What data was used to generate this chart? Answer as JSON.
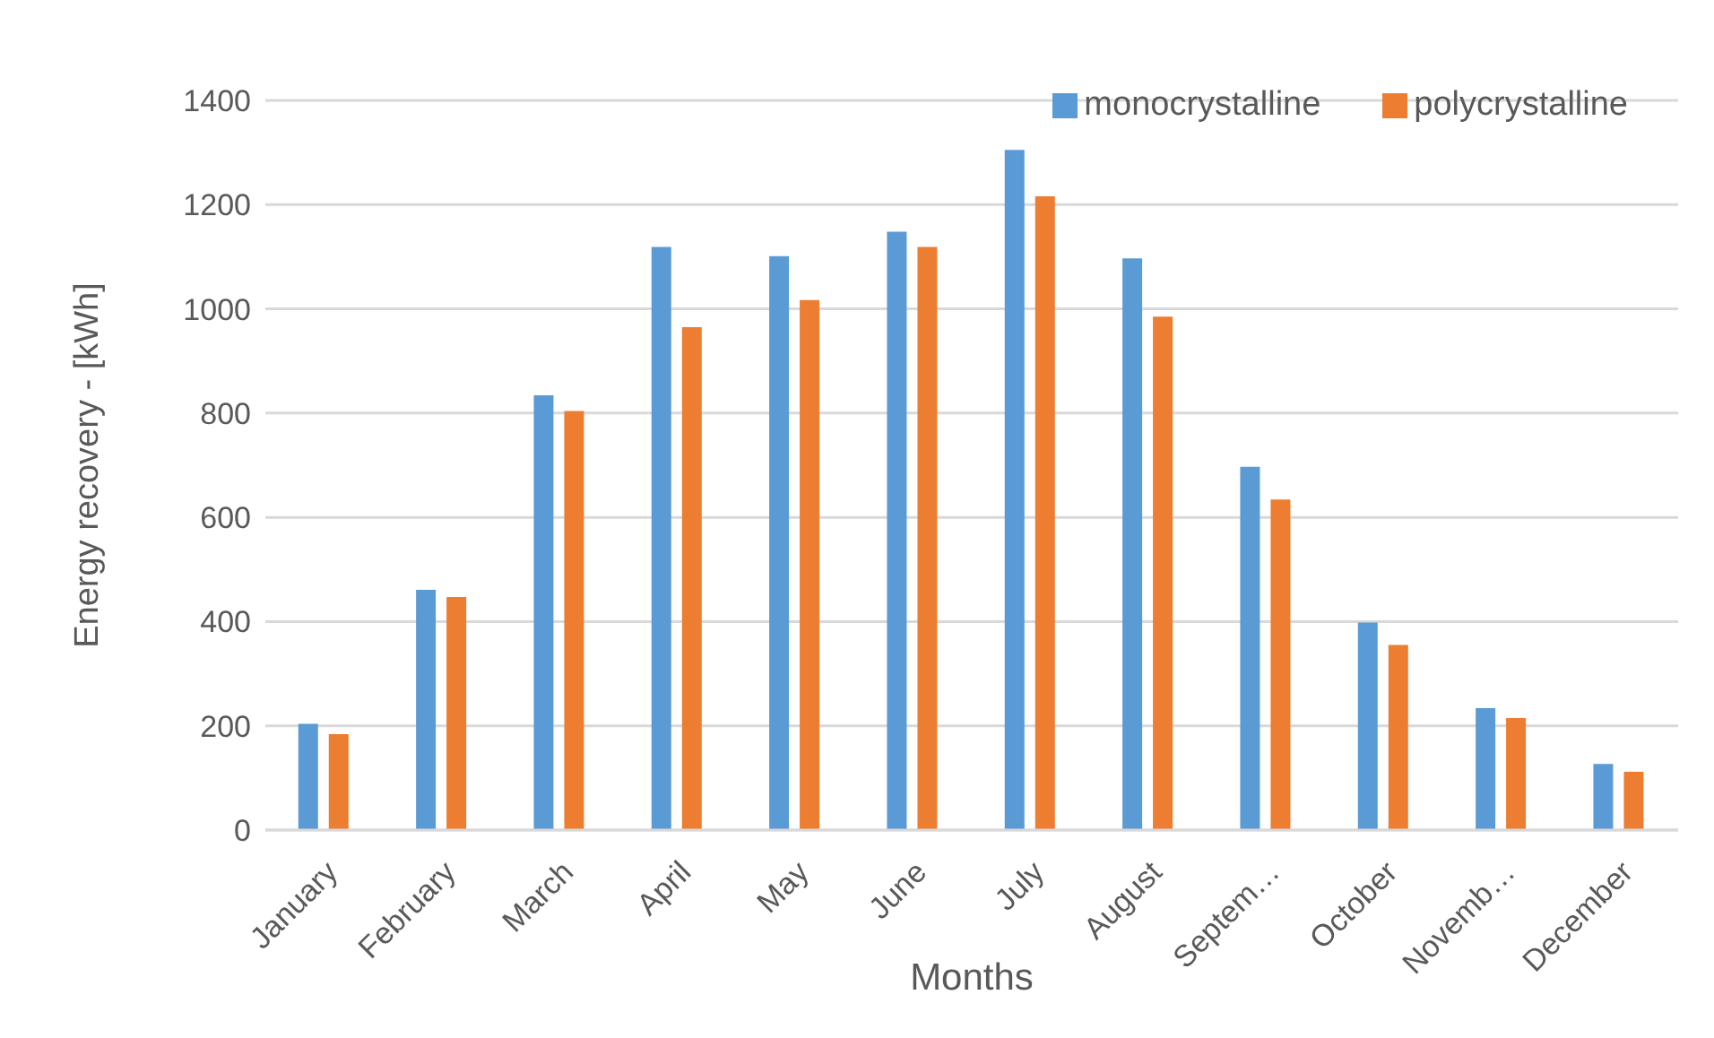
{
  "chart_data": {
    "type": "bar",
    "xlabel": "Months",
    "ylabel": "Energy recovery - [kWh]",
    "categories": [
      "January",
      "February",
      "March",
      "April",
      "May",
      "June",
      "July",
      "August",
      "Septem…",
      "October",
      "Novemb…",
      "December"
    ],
    "series": [
      {
        "name": "monocrystalline",
        "color": "#5b9bd5",
        "values": [
          204,
          461,
          834,
          1119,
          1101,
          1148,
          1305,
          1097,
          697,
          398,
          234,
          127
        ]
      },
      {
        "name": "polycrystalline",
        "color": "#ed7d31",
        "values": [
          184,
          447,
          804,
          965,
          1017,
          1119,
          1216,
          985,
          634,
          355,
          215,
          112
        ]
      }
    ],
    "ylim": [
      0,
      1400
    ],
    "yticks": [
      0,
      200,
      400,
      600,
      800,
      1000,
      1200,
      1400
    ],
    "grid": "y",
    "legend": "top right"
  }
}
